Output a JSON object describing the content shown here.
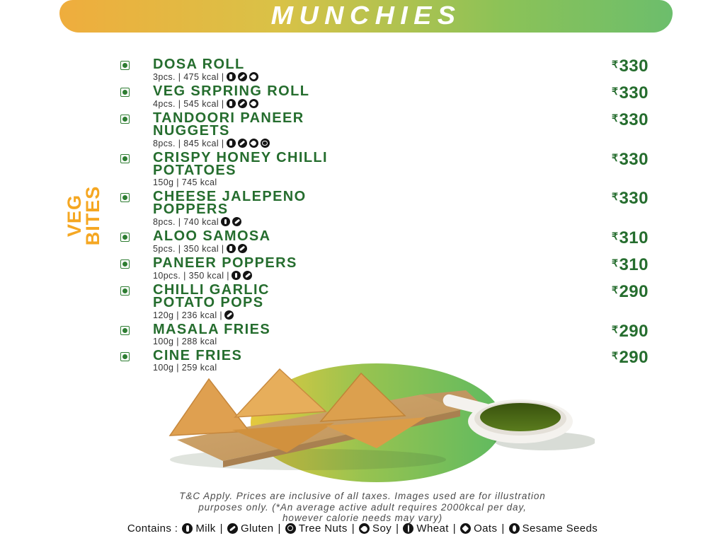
{
  "header": {
    "title": "MUNCHIES"
  },
  "section_label": {
    "line1": "VEG",
    "line2": "BITES"
  },
  "currency": "₹",
  "items": [
    {
      "name": "DOSA ROLL",
      "details": "3pcs. | 475 kcal |",
      "allergens": [
        "milk",
        "gluten",
        "soy"
      ],
      "price": "330"
    },
    {
      "name": "VEG SRPRING ROLL",
      "details": "4pcs. | 545 kcal |",
      "allergens": [
        "milk",
        "gluten",
        "soy"
      ],
      "price": "330"
    },
    {
      "name": "TANDOORI PANEER\nNUGGETS",
      "details": "8pcs. | 845 kcal |",
      "allergens": [
        "milk",
        "gluten",
        "soy",
        "treenuts"
      ],
      "price": "330"
    },
    {
      "name": "CRISPY HONEY CHILLI\nPOTATOES",
      "details": "150g | 745 kcal",
      "allergens": [],
      "price": "330"
    },
    {
      "name": "CHEESE JALEPENO\nPOPPERS",
      "details": "8pcs. | 740 kcal",
      "allergens": [
        "milk",
        "gluten"
      ],
      "price": "330"
    },
    {
      "name": "ALOO SAMOSA",
      "details": "5pcs. | 350 kcal |",
      "allergens": [
        "milk",
        "gluten"
      ],
      "price": "310"
    },
    {
      "name": "PANEER POPPERS",
      "details": "10pcs. | 350 kcal |",
      "allergens": [
        "milk",
        "gluten"
      ],
      "price": "310"
    },
    {
      "name": "CHILLI GARLIC\nPOTATO POPS",
      "details": "120g | 236 kcal |",
      "allergens": [
        "gluten"
      ],
      "price": "290"
    },
    {
      "name": "MASALA FRIES",
      "details": "100g | 288 kcal",
      "allergens": [],
      "price": "290"
    },
    {
      "name": "CINE FRIES",
      "details": "100g | 259 kcal",
      "allergens": [],
      "price": "290"
    }
  ],
  "footer": {
    "terms_line1": "T&C Apply. Prices are inclusive of all taxes. Images used are for illustration",
    "terms_line2": "purposes only. (*An average active adult requires 2000kcal per day,",
    "terms_line3": "however calorie needs may vary)",
    "contains_label": "Contains :",
    "allergen_legend": [
      {
        "type": "milk",
        "label": "Milk"
      },
      {
        "type": "gluten",
        "label": "Gluten"
      },
      {
        "type": "treenuts",
        "label": "Tree Nuts"
      },
      {
        "type": "soy",
        "label": "Soy"
      },
      {
        "type": "wheat",
        "label": "Wheat"
      },
      {
        "type": "oats",
        "label": "Oats"
      },
      {
        "type": "sesame",
        "label": "Sesame Seeds"
      }
    ]
  },
  "colors": {
    "banner_gradient_start": "#EFAD3D",
    "banner_gradient_end": "#6CBE6C",
    "title_green": "#256D2E",
    "accent_orange": "#F5A722"
  }
}
